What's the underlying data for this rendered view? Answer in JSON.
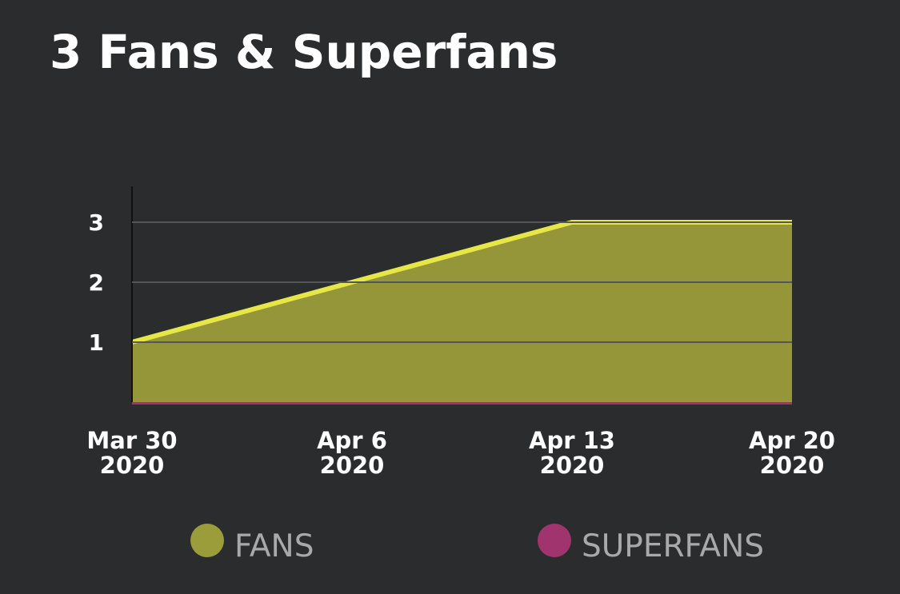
{
  "chart_data": {
    "type": "area",
    "title": "3 Fans & Superfans",
    "categories": [
      "Mar 30\n2020",
      "Apr 6\n2020",
      "Apr 13\n2020",
      "Apr 20\n2020"
    ],
    "series": [
      {
        "name": "FANS",
        "color": "#9b9c3a",
        "line_color": "#e6e646",
        "values": [
          1,
          2,
          3,
          3
        ]
      },
      {
        "name": "SUPERFANS",
        "color": "#a0346e",
        "values": [
          0,
          0,
          0,
          0
        ]
      }
    ],
    "ylim": [
      0,
      3.6
    ],
    "yticks": [
      1,
      2,
      3
    ],
    "grid": true
  }
}
